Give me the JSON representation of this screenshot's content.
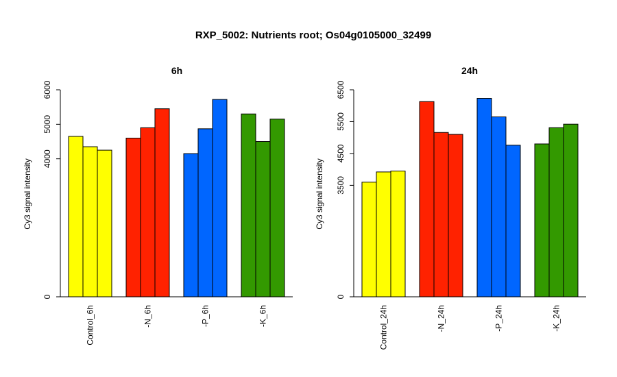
{
  "figure": {
    "title": "RXP_5002: Nutrients root; Os04g0105000_32499"
  },
  "chart_data": [
    {
      "type": "bar",
      "title": "6h",
      "ylabel": "Cy3 signal intensity",
      "xlabel": "",
      "ylim": [
        0,
        6000
      ],
      "yticks": [
        "0",
        "4000",
        "5000",
        "6000"
      ],
      "grid": false,
      "groups": [
        {
          "label": "Control_6h",
          "color": "#ffff00",
          "values": [
            4650,
            4350,
            4250
          ]
        },
        {
          "label": "-N_6h",
          "color": "#ff2200",
          "values": [
            4600,
            4900,
            5450
          ]
        },
        {
          "label": "-P_6h",
          "color": "#0066ff",
          "values": [
            4150,
            4870,
            5720
          ]
        },
        {
          "label": "-K_6h",
          "color": "#339900",
          "values": [
            5300,
            4500,
            5150
          ]
        }
      ]
    },
    {
      "type": "bar",
      "title": "24h",
      "ylabel": "Cy3 signal intensity",
      "xlabel": "",
      "ylim": [
        0,
        6500
      ],
      "yticks": [
        "0",
        "3500",
        "4500",
        "5500",
        "6500"
      ],
      "grid": false,
      "groups": [
        {
          "label": "Control_24h",
          "color": "#ffff00",
          "values": [
            3600,
            3920,
            3950
          ]
        },
        {
          "label": "-N_24h",
          "color": "#ff2200",
          "values": [
            6130,
            5160,
            5100
          ]
        },
        {
          "label": "-P_24h",
          "color": "#0066ff",
          "values": [
            6230,
            5650,
            4760
          ]
        },
        {
          "label": "-K_24h",
          "color": "#339900",
          "values": [
            4800,
            5310,
            5420
          ]
        }
      ]
    }
  ]
}
